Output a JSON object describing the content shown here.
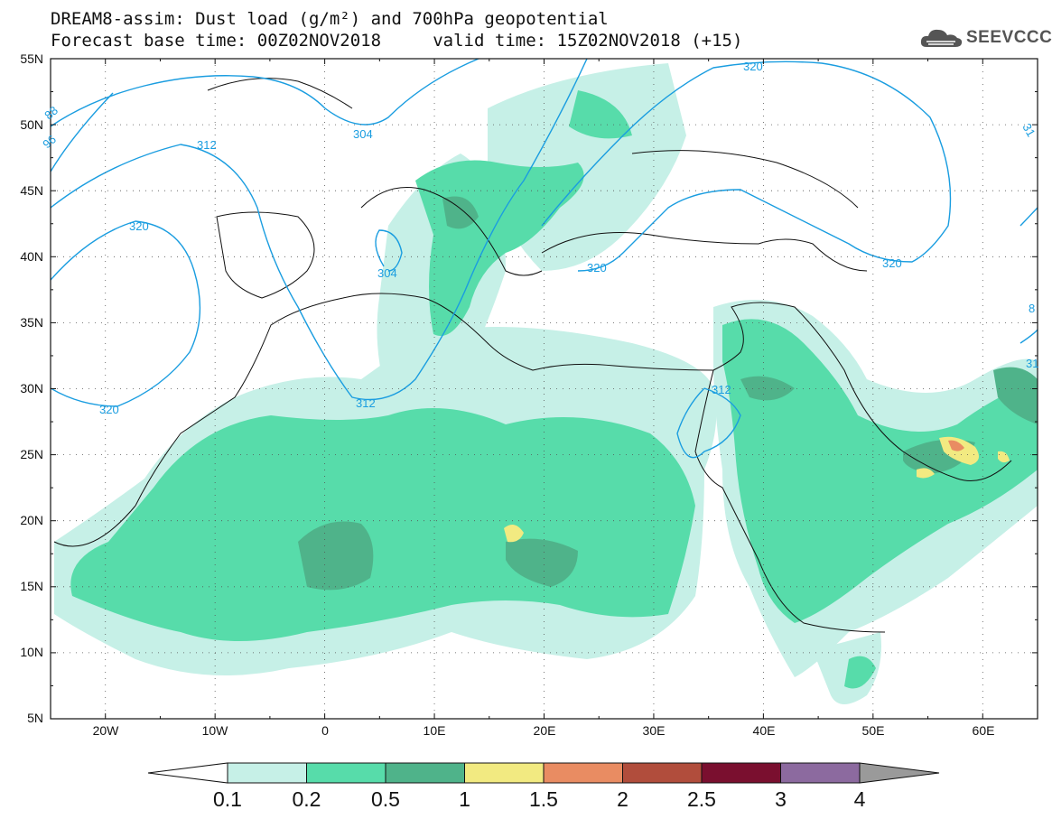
{
  "title": {
    "line1": "DREAM8-assim: Dust load (g/m²) and 700hPa geopotential",
    "line2": "Forecast base time: 00Z02NOV2018     valid time: 15Z02NOV2018 (+15)"
  },
  "logo": {
    "text": "SEEVCCC",
    "icon": "cloud-icon"
  },
  "map": {
    "lon_range": [
      -25,
      65
    ],
    "lat_range": [
      5,
      55
    ],
    "lat_ticks": [
      "55N",
      "50N",
      "45N",
      "40N",
      "35N",
      "30N",
      "25N",
      "20N",
      "15N",
      "10N",
      "5N"
    ],
    "lon_ticks": [
      "20W",
      "10W",
      "0",
      "10E",
      "20E",
      "30E",
      "40E",
      "50E",
      "60E"
    ],
    "contour_labels": [
      "88",
      "96",
      "304",
      "312",
      "320",
      "312",
      "320",
      "304",
      "320",
      "320",
      "312",
      "320",
      "31",
      "8",
      "31"
    ]
  },
  "colorbar": {
    "levels": [
      "0.1",
      "0.2",
      "0.5",
      "1",
      "1.5",
      "2",
      "2.5",
      "3",
      "4"
    ],
    "colors": [
      "#c6f0e7",
      "#57dcaa",
      "#4fb38a",
      "#f2ea81",
      "#e98c62",
      "#b14d3c",
      "#7a0f2f",
      "#8c6a9f"
    ],
    "below_color": "#ffffff",
    "above_color": "#9a9a9a"
  },
  "colors": {
    "contour": "#1a9de0"
  }
}
